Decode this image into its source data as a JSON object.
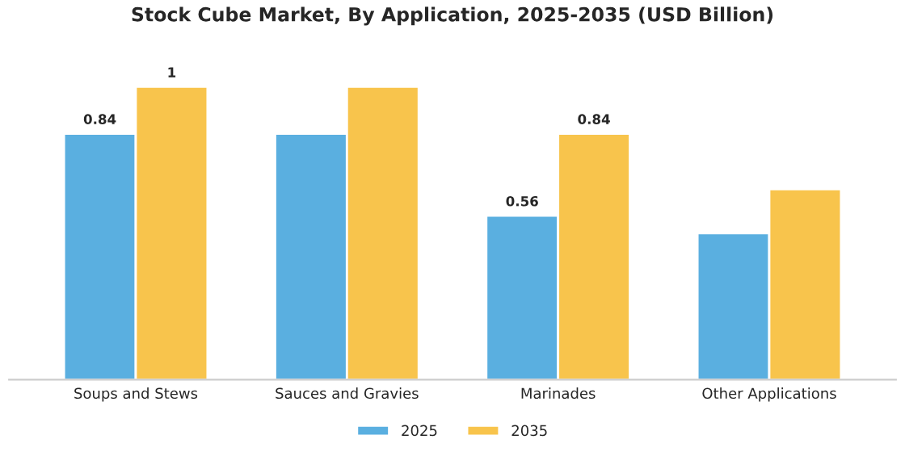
{
  "chart_data": {
    "type": "bar",
    "title": "Stock Cube Market, By Application, 2025-2035 (USD Billion)",
    "categories": [
      "Soups and Stews",
      "Sauces and Gravies",
      "Marinades",
      "Other Applications"
    ],
    "series": [
      {
        "name": "2025",
        "color": "#5aafe0",
        "values": [
          0.84,
          0.84,
          0.56,
          0.5
        ],
        "value_labels": [
          "0.84",
          null,
          "0.56",
          null
        ]
      },
      {
        "name": "2035",
        "color": "#f8c44c",
        "values": [
          1,
          1,
          0.84,
          0.65
        ],
        "value_labels": [
          "1",
          null,
          "0.84",
          null
        ]
      }
    ],
    "legend": "bottom",
    "grid": false
  }
}
